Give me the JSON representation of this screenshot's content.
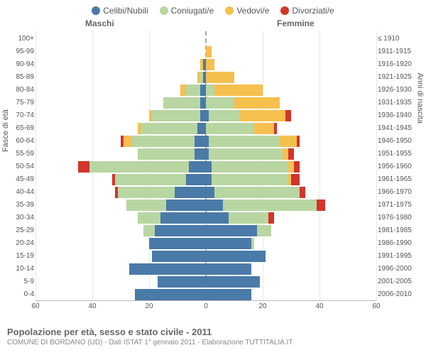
{
  "legend": [
    {
      "label": "Celibi/Nubili",
      "color": "#4a7aa8"
    },
    {
      "label": "Coniugati/e",
      "color": "#b8d6a2"
    },
    {
      "label": "Vedovi/e",
      "color": "#f5c04e"
    },
    {
      "label": "Divorziati/e",
      "color": "#d3342b"
    }
  ],
  "headers": {
    "male": "Maschi",
    "female": "Femmine"
  },
  "axes": {
    "left": "Fasce di età",
    "right": "Anni di nascita",
    "xmax": 60,
    "xticks": [
      60,
      40,
      20,
      0,
      20,
      40,
      60
    ]
  },
  "colors": {
    "celibi": "#4a7aa8",
    "coniugati": "#b8d6a2",
    "vedovi": "#f5c04e",
    "divorziati": "#d3342b",
    "grid": "#d0d0d0",
    "centerline": "#aaaaaa"
  },
  "rows": [
    {
      "age": "100+",
      "birth": "≤ 1910",
      "m": [
        0,
        0,
        0,
        0
      ],
      "f": [
        0,
        0,
        0,
        0
      ]
    },
    {
      "age": "95-99",
      "birth": "1911-1915",
      "m": [
        0,
        0,
        0,
        0
      ],
      "f": [
        0,
        0,
        2,
        0
      ]
    },
    {
      "age": "90-94",
      "birth": "1916-1920",
      "m": [
        1,
        0,
        1,
        0
      ],
      "f": [
        0,
        0,
        3,
        0
      ]
    },
    {
      "age": "85-89",
      "birth": "1921-1925",
      "m": [
        1,
        1,
        1,
        0
      ],
      "f": [
        0,
        0,
        10,
        0
      ]
    },
    {
      "age": "80-84",
      "birth": "1926-1930",
      "m": [
        2,
        5,
        2,
        0
      ],
      "f": [
        0,
        3,
        17,
        0
      ]
    },
    {
      "age": "75-79",
      "birth": "1931-1935",
      "m": [
        2,
        13,
        0,
        0
      ],
      "f": [
        0,
        10,
        16,
        0
      ]
    },
    {
      "age": "70-74",
      "birth": "1936-1940",
      "m": [
        2,
        17,
        1,
        0
      ],
      "f": [
        1,
        11,
        16,
        2
      ]
    },
    {
      "age": "65-69",
      "birth": "1941-1945",
      "m": [
        3,
        20,
        1,
        0
      ],
      "f": [
        0,
        17,
        7,
        1
      ]
    },
    {
      "age": "60-64",
      "birth": "1946-1950",
      "m": [
        4,
        22,
        3,
        1
      ],
      "f": [
        1,
        25,
        6,
        1
      ]
    },
    {
      "age": "55-59",
      "birth": "1951-1955",
      "m": [
        4,
        20,
        0,
        0
      ],
      "f": [
        1,
        26,
        2,
        2
      ]
    },
    {
      "age": "50-54",
      "birth": "1956-1960",
      "m": [
        6,
        35,
        0,
        4
      ],
      "f": [
        2,
        27,
        2,
        2
      ]
    },
    {
      "age": "45-49",
      "birth": "1961-1965",
      "m": [
        7,
        25,
        0,
        1
      ],
      "f": [
        2,
        27,
        1,
        3
      ]
    },
    {
      "age": "40-44",
      "birth": "1966-1970",
      "m": [
        11,
        20,
        0,
        1
      ],
      "f": [
        3,
        30,
        0,
        2
      ]
    },
    {
      "age": "35-39",
      "birth": "1971-1975",
      "m": [
        14,
        14,
        0,
        0
      ],
      "f": [
        6,
        33,
        0,
        3
      ]
    },
    {
      "age": "30-34",
      "birth": "1976-1980",
      "m": [
        16,
        8,
        0,
        0
      ],
      "f": [
        8,
        14,
        0,
        2
      ]
    },
    {
      "age": "25-29",
      "birth": "1981-1985",
      "m": [
        18,
        4,
        0,
        0
      ],
      "f": [
        18,
        5,
        0,
        0
      ]
    },
    {
      "age": "20-24",
      "birth": "1986-1990",
      "m": [
        20,
        0,
        0,
        0
      ],
      "f": [
        16,
        1,
        0,
        0
      ]
    },
    {
      "age": "15-19",
      "birth": "1991-1995",
      "m": [
        19,
        0,
        0,
        0
      ],
      "f": [
        21,
        0,
        0,
        0
      ]
    },
    {
      "age": "10-14",
      "birth": "1996-2000",
      "m": [
        27,
        0,
        0,
        0
      ],
      "f": [
        16,
        0,
        0,
        0
      ]
    },
    {
      "age": "5-9",
      "birth": "2001-2005",
      "m": [
        17,
        0,
        0,
        0
      ],
      "f": [
        19,
        0,
        0,
        0
      ]
    },
    {
      "age": "0-4",
      "birth": "2006-2010",
      "m": [
        25,
        0,
        0,
        0
      ],
      "f": [
        16,
        0,
        0,
        0
      ]
    }
  ],
  "footer": {
    "title": "Popolazione per età, sesso e stato civile - 2011",
    "subtitle": "COMUNE DI BORDANO (UD) - Dati ISTAT 1° gennaio 2011 - Elaborazione TUTTITALIA.IT"
  }
}
